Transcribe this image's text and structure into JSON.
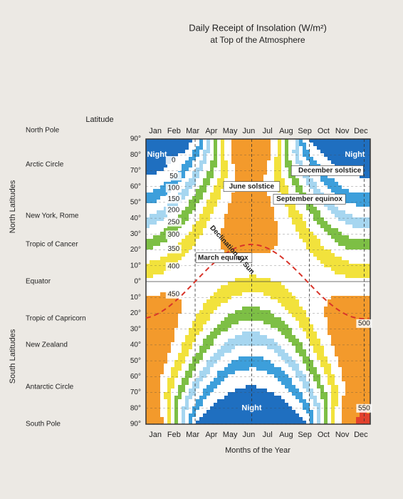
{
  "chart_data": {
    "type": "contour",
    "title": "Daily Receipt of Insolation (W/m²)",
    "subtitle": "at Top of the Atmosphere",
    "x_label": "Months of the Year",
    "y_label": "Latitude",
    "hemisphere_labels": [
      "North Latitudes",
      "South Latitudes"
    ],
    "categories": [
      "Jan",
      "Feb",
      "Mar",
      "Apr",
      "May",
      "Jun",
      "Jul",
      "Aug",
      "Sep",
      "Oct",
      "Nov",
      "Dec"
    ],
    "ylim": [
      -90,
      90
    ],
    "yticks": [
      {
        "value": 90,
        "label": "90°"
      },
      {
        "value": 80,
        "label": "80°"
      },
      {
        "value": 70,
        "label": "70°"
      },
      {
        "value": 60,
        "label": "60°"
      },
      {
        "value": 50,
        "label": "50°"
      },
      {
        "value": 40,
        "label": "40°"
      },
      {
        "value": 30,
        "label": "30°"
      },
      {
        "value": 20,
        "label": "20°"
      },
      {
        "value": 10,
        "label": "10°"
      },
      {
        "value": 0,
        "label": "0°"
      },
      {
        "value": -10,
        "label": "10°"
      },
      {
        "value": -20,
        "label": "20°"
      },
      {
        "value": -30,
        "label": "30°"
      },
      {
        "value": -40,
        "label": "40°"
      },
      {
        "value": -50,
        "label": "50°"
      },
      {
        "value": -60,
        "label": "60°"
      },
      {
        "value": -70,
        "label": "70°"
      },
      {
        "value": -80,
        "label": "80°"
      },
      {
        "value": -90,
        "label": "90°"
      }
    ],
    "latitude_names": [
      "North Pole",
      "Arctic Circle",
      "New York, Rome",
      "Tropic of Cancer",
      "Equator",
      "Tropic of Capricorn",
      "New Zealand",
      "Antarctic Circle",
      "South Pole"
    ],
    "contour_levels": [
      0,
      50,
      100,
      150,
      200,
      250,
      300,
      350,
      400,
      450,
      500,
      550
    ],
    "band_colors": [
      "#1f6fc0",
      "#ffffff",
      "#3d9fdb",
      "#ffffff",
      "#a6d6f0",
      "#ffffff",
      "#7dbf45",
      "#ffffff",
      "#f2e23c",
      "#ffffff",
      "#f39a2c",
      "#f39a2c",
      "#e2412d"
    ],
    "night_labels": [
      "Night",
      "Night",
      "Night"
    ],
    "annotations": [
      "March equinox",
      "June solstice",
      "September equinox",
      "December solstice",
      "Declination of Sun"
    ],
    "grid": true
  }
}
